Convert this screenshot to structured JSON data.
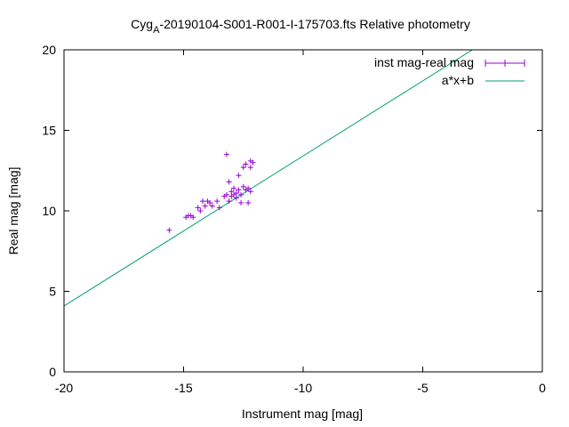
{
  "chart_data": {
    "type": "scatter",
    "title_main": "Cyg",
    "title_sub": "A",
    "title_rest": "-20190104-S001-R001-I-175703.fts Relative photometry",
    "xlabel": "Instrument mag [mag]",
    "ylabel": "Real mag [mag]",
    "xlim": [
      -20,
      0
    ],
    "ylim": [
      0,
      20
    ],
    "xticks": [
      -20,
      -15,
      -10,
      -5,
      0
    ],
    "yticks": [
      0,
      5,
      10,
      15,
      20
    ],
    "grid": false,
    "legend_position": "top-right",
    "legend": [
      {
        "label": "inst mag-real mag",
        "color": "#9400d3",
        "style": "errorbars"
      },
      {
        "label": "a*x+b",
        "color": "#009e73",
        "style": "line"
      }
    ],
    "series": [
      {
        "name": "inst mag-real mag",
        "color": "#9400d3",
        "points": [
          [
            -15.6,
            8.8
          ],
          [
            -14.9,
            9.6
          ],
          [
            -14.8,
            9.7
          ],
          [
            -14.7,
            9.7
          ],
          [
            -14.6,
            9.6
          ],
          [
            -14.4,
            10.2
          ],
          [
            -14.3,
            10.0
          ],
          [
            -14.2,
            10.6
          ],
          [
            -14.1,
            10.3
          ],
          [
            -14.0,
            10.6
          ],
          [
            -13.9,
            10.5
          ],
          [
            -13.8,
            10.3
          ],
          [
            -13.6,
            10.6
          ],
          [
            -13.5,
            10.2
          ],
          [
            -13.3,
            10.9
          ],
          [
            -13.2,
            11.0
          ],
          [
            -13.2,
            13.5
          ],
          [
            -13.1,
            11.8
          ],
          [
            -13.1,
            10.6
          ],
          [
            -13.0,
            11.2
          ],
          [
            -13.0,
            10.9
          ],
          [
            -12.9,
            11.0
          ],
          [
            -12.9,
            11.4
          ],
          [
            -12.8,
            11.1
          ],
          [
            -12.8,
            10.8
          ],
          [
            -12.7,
            12.2
          ],
          [
            -12.7,
            11.3
          ],
          [
            -12.6,
            11.0
          ],
          [
            -12.6,
            10.5
          ],
          [
            -12.5,
            12.7
          ],
          [
            -12.5,
            11.5
          ],
          [
            -12.4,
            12.9
          ],
          [
            -12.4,
            11.3
          ],
          [
            -12.3,
            11.4
          ],
          [
            -12.3,
            10.5
          ],
          [
            -12.2,
            13.1
          ],
          [
            -12.2,
            12.7
          ],
          [
            -12.2,
            11.2
          ],
          [
            -12.1,
            13.0
          ]
        ]
      },
      {
        "name": "a*x+b",
        "color": "#009e73",
        "line": {
          "slope": 0.932,
          "intercept": 22.73
        }
      }
    ]
  }
}
